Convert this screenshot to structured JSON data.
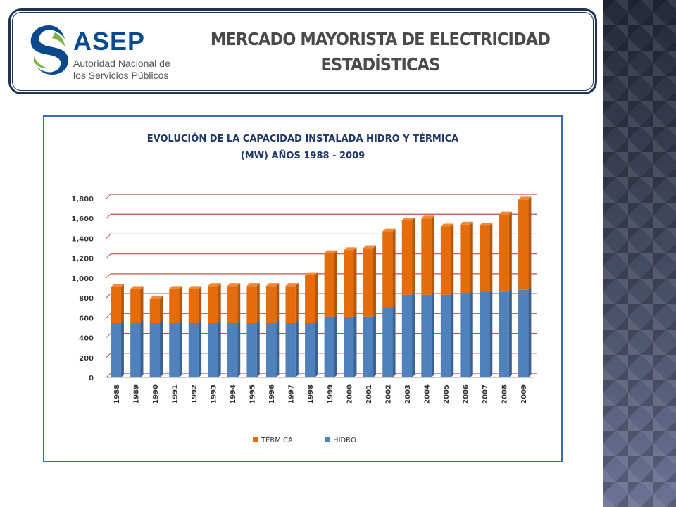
{
  "header": {
    "logo_word": "ASEP",
    "logo_sub_1": "Autoridad Nacional de",
    "logo_sub_2": "los Servicios Públicos",
    "title_line_1": "MERCADO MAYORISTA DE ELECTRICIDAD",
    "title_line_2": "ESTADÍSTICAS"
  },
  "colors": {
    "hidro": "#4f81bd",
    "termica": "#e46c0a",
    "gridline": "#c0504d",
    "frame": "#3b6bb5",
    "title": "#1f3868"
  },
  "chart_data": {
    "type": "bar",
    "stacked": true,
    "title_line_1": "EVOLUCIÓN DE LA CAPACIDAD  INSTALADA HIDRO Y TÉRMICA",
    "title_line_2": "(MW)       AÑOS  1988 - 2009",
    "categories": [
      "1988",
      "1989",
      "1990",
      "1991",
      "1992",
      "1993",
      "1994",
      "1995",
      "1996",
      "1997",
      "1998",
      "1999",
      "2000",
      "2001",
      "2002",
      "2003",
      "2004",
      "2005",
      "2006",
      "2007",
      "2008",
      "2009"
    ],
    "series": [
      {
        "name": "HIDRO",
        "values": [
          550,
          550,
          550,
          550,
          550,
          550,
          550,
          550,
          550,
          550,
          550,
          610,
          610,
          610,
          700,
          830,
          830,
          830,
          850,
          860,
          870,
          880
        ]
      },
      {
        "name": "TÉRMICA",
        "values": [
          360,
          340,
          240,
          340,
          340,
          370,
          370,
          370,
          370,
          370,
          480,
          640,
          670,
          690,
          770,
          750,
          770,
          690,
          690,
          670,
          770,
          910
        ]
      }
    ],
    "yticks": [
      "0",
      "200",
      "400",
      "600",
      "800",
      "1,000",
      "1,200",
      "1,400",
      "1,600",
      "1,800"
    ],
    "ylim": [
      0,
      1800
    ],
    "grid": true,
    "legend_position": "bottom",
    "legend": [
      "TÉRMICA",
      "HIDRO"
    ]
  }
}
